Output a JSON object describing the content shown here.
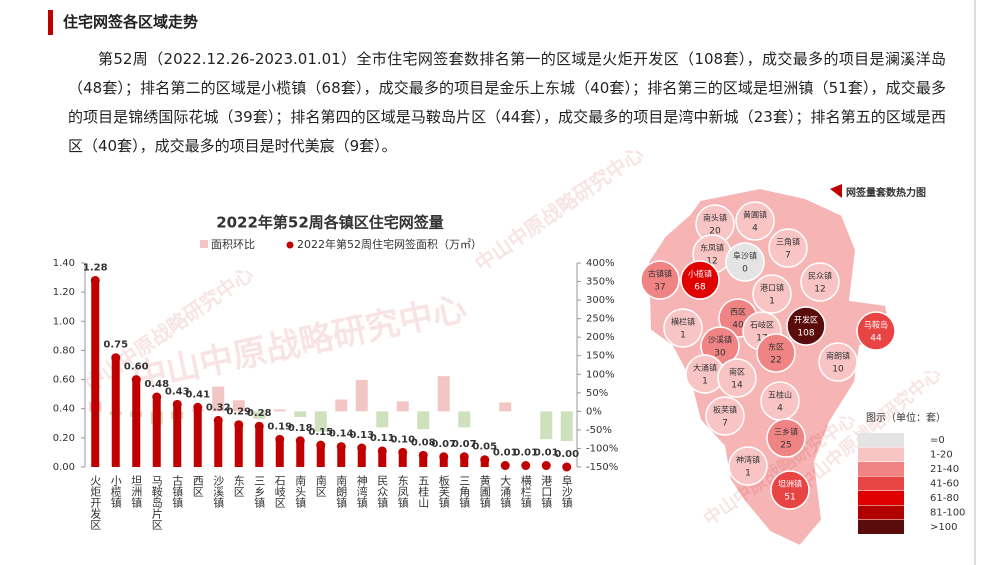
{
  "header": {
    "title": "住宅网签各区域走势"
  },
  "paragraph": "第52周（2022.12.26-2023.01.01）全市住宅网签套数排名第一的区域是火炬开发区（108套），成交最多的项目是澜溪洋岛（48套）；排名第二的区域是小榄镇（68套），成交最多的项目是金乐上东城（40套）；排名第三的区域是坦洲镇（51套），成交最多的项目是锦绣国际花城（39套）；排名第四的区域是马鞍岛片区（44套），成交最多的项目是湾中新城（23套）；排名第五的区域是西区（40套），成交最多的项目是时代美宸（9套）。",
  "watermark": "中山中原战略研究中心",
  "chart_data": {
    "type": "bar",
    "title": "2022年第52周各镇区住宅网签量",
    "categories": [
      "火炬开发区",
      "小榄镇",
      "坦洲镇",
      "马鞍岛片区",
      "古镇镇",
      "西区",
      "沙溪镇",
      "东区",
      "三乡镇",
      "石岐区",
      "南头镇",
      "南区",
      "南朗镇",
      "神湾镇",
      "民众镇",
      "东凤镇",
      "五桂山",
      "板芙镇",
      "三角镇",
      "黄圃镇",
      "大涌镇",
      "横栏镇",
      "港口镇",
      "阜沙镇"
    ],
    "series": [
      {
        "name": "面积环比",
        "color": "#f3c6c6",
        "negative_color": "#cfe0bd",
        "axis": "y2",
        "values": [
          25,
          -10,
          -15,
          -35,
          -20,
          5,
          67,
          30,
          -20,
          5,
          -15,
          -55,
          32,
          85,
          -43,
          27,
          -48,
          95,
          -43,
          0,
          24,
          0,
          -75,
          -80
        ]
      },
      {
        "name": "2022年第52周住宅网签面积（万㎡）",
        "color": "#c00000",
        "values": [
          1.28,
          0.75,
          0.6,
          0.48,
          0.43,
          0.41,
          0.32,
          0.29,
          0.28,
          0.19,
          0.18,
          0.15,
          0.14,
          0.13,
          0.11,
          0.1,
          0.08,
          0.07,
          0.07,
          0.05,
          0.01,
          0.01,
          0.01,
          0
        ],
        "value_labels": [
          "1.28",
          "0.75",
          "0.60",
          "0.48",
          "0.43",
          "0.41",
          "0.32",
          "0.29",
          "0.28",
          "0.19",
          "0.18",
          "0.15",
          "0.14",
          "0.13",
          "0.11",
          "0.10",
          "0.08",
          "0.07",
          "0.07",
          "0.05",
          "0.01",
          "0.01",
          "0.01",
          "0.00"
        ]
      }
    ],
    "ylim": [
      0,
      1.4
    ],
    "yticks": [
      {
        "value": 0,
        "label": "0.00"
      },
      {
        "value": 0.2,
        "label": "0.20"
      },
      {
        "value": 0.4,
        "label": "0.40"
      },
      {
        "value": 0.6,
        "label": "0.60"
      },
      {
        "value": 0.8,
        "label": "0.80"
      },
      {
        "value": 1,
        "label": "1.00"
      },
      {
        "value": 1.2,
        "label": "1.20"
      },
      {
        "value": 1.4,
        "label": "1.40"
      }
    ],
    "y2lim": [
      -150,
      400
    ],
    "y2ticks": [
      {
        "value": -150,
        "label": "-150%"
      },
      {
        "value": -100,
        "label": "-100%"
      },
      {
        "value": -50,
        "label": "-50%"
      },
      {
        "value": 0,
        "label": "0%"
      },
      {
        "value": 50,
        "label": "50%"
      },
      {
        "value": 100,
        "label": "100%"
      },
      {
        "value": 150,
        "label": "150%"
      },
      {
        "value": 200,
        "label": "200%"
      },
      {
        "value": 250,
        "label": "250%"
      },
      {
        "value": 300,
        "label": "300%"
      },
      {
        "value": 350,
        "label": "350%"
      },
      {
        "value": 400,
        "label": "400%"
      }
    ]
  },
  "map": {
    "title": "网签量套数热力图",
    "legend_title": "图示（单位：套）",
    "legend": [
      {
        "label": "=0",
        "color": "#e4e4e4"
      },
      {
        "label": "1-20",
        "color": "#f8c4c4"
      },
      {
        "label": "21-40",
        "color": "#f08484"
      },
      {
        "label": "41-60",
        "color": "#e84444"
      },
      {
        "label": "61-80",
        "color": "#e00000"
      },
      {
        "label": "81-100",
        "color": "#b00000"
      },
      {
        "label": ">100",
        "color": "#5a0c0c"
      }
    ],
    "regions": [
      {
        "name": "南头镇",
        "value": 20,
        "color": "#f8c4c4"
      },
      {
        "name": "黄圃镇",
        "value": 4,
        "color": "#f8c4c4"
      },
      {
        "name": "东凤镇",
        "value": 12,
        "color": "#f8c4c4"
      },
      {
        "name": "阜沙镇",
        "value": 0,
        "color": "#e4e4e4"
      },
      {
        "name": "三角镇",
        "value": 7,
        "color": "#f8c4c4"
      },
      {
        "name": "古镇镇",
        "value": 37,
        "color": "#f08484"
      },
      {
        "name": "小榄镇",
        "value": 68,
        "color": "#e00000"
      },
      {
        "name": "港口镇",
        "value": 1,
        "color": "#f8c4c4"
      },
      {
        "name": "民众镇",
        "value": 12,
        "color": "#f8c4c4"
      },
      {
        "name": "横栏镇",
        "value": 1,
        "color": "#f8c4c4"
      },
      {
        "name": "西区",
        "value": 40,
        "color": "#f08484"
      },
      {
        "name": "石岐区",
        "value": 17,
        "color": "#f8c4c4"
      },
      {
        "name": "开发区",
        "value": 108,
        "color": "#5a0c0c"
      },
      {
        "name": "马鞍岛",
        "value": 44,
        "color": "#e84444"
      },
      {
        "name": "沙溪镇",
        "value": 30,
        "color": "#f08484"
      },
      {
        "name": "东区",
        "value": 22,
        "color": "#f08484"
      },
      {
        "name": "南朗镇",
        "value": 10,
        "color": "#f8c4c4"
      },
      {
        "name": "大涌镇",
        "value": 1,
        "color": "#f8c4c4"
      },
      {
        "name": "南区",
        "value": 14,
        "color": "#f8c4c4"
      },
      {
        "name": "五桂山",
        "value": 4,
        "color": "#f8c4c4"
      },
      {
        "name": "板芙镇",
        "value": 7,
        "color": "#f8c4c4"
      },
      {
        "name": "三乡镇",
        "value": 25,
        "color": "#f08484"
      },
      {
        "name": "神湾镇",
        "value": 1,
        "color": "#f8c4c4"
      },
      {
        "name": "坦洲镇",
        "value": 51,
        "color": "#e84444"
      }
    ]
  }
}
